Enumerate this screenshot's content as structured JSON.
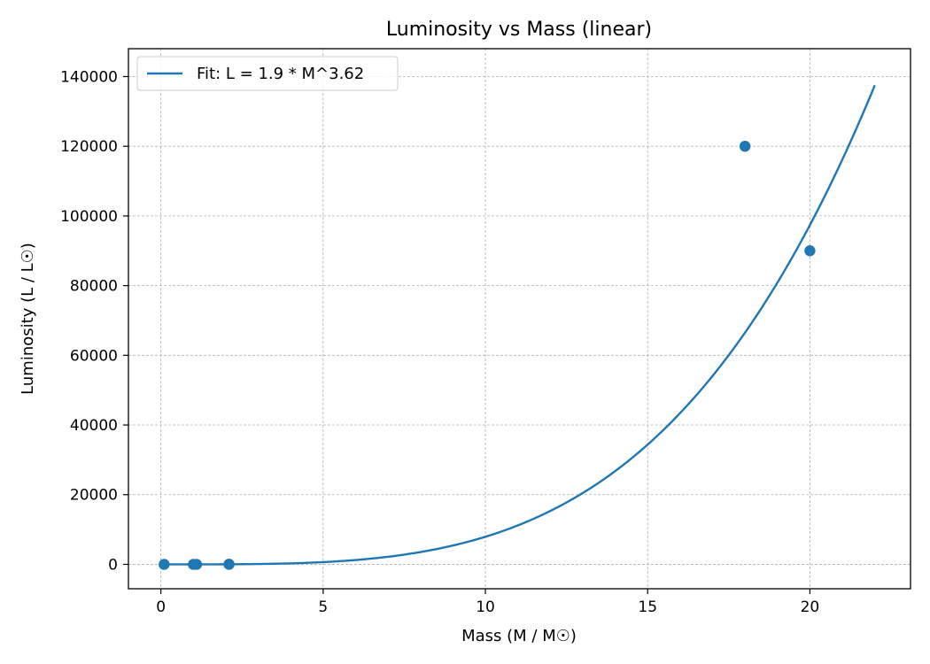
{
  "chart_data": {
    "type": "scatter",
    "title": "Luminosity vs Mass (linear)",
    "xlabel": "Mass (M / M☉)",
    "ylabel": "Luminosity (L / L☉)",
    "xlim": [
      -1,
      23.1
    ],
    "ylim": [
      -7000,
      148000
    ],
    "xticks": [
      0,
      5,
      10,
      15,
      20
    ],
    "yticks": [
      0,
      20000,
      40000,
      60000,
      80000,
      100000,
      120000,
      140000
    ],
    "grid": true,
    "legend_position": "top-left",
    "colors": {
      "series": "#1f77b4",
      "grid": "#b0b0b0"
    },
    "series": [
      {
        "kind": "points",
        "x": [
          0.1,
          1.0,
          1.1,
          2.1,
          2.1,
          18.0,
          20.0
        ],
        "y": [
          0,
          1,
          1,
          20,
          25,
          120000,
          90000
        ]
      },
      {
        "kind": "line",
        "name": "Fit: L = 1.9 * M^3.62",
        "formula": {
          "coefficient": 1.9,
          "exponent": 3.62
        },
        "x_range": [
          0.1,
          22.0
        ]
      }
    ]
  }
}
